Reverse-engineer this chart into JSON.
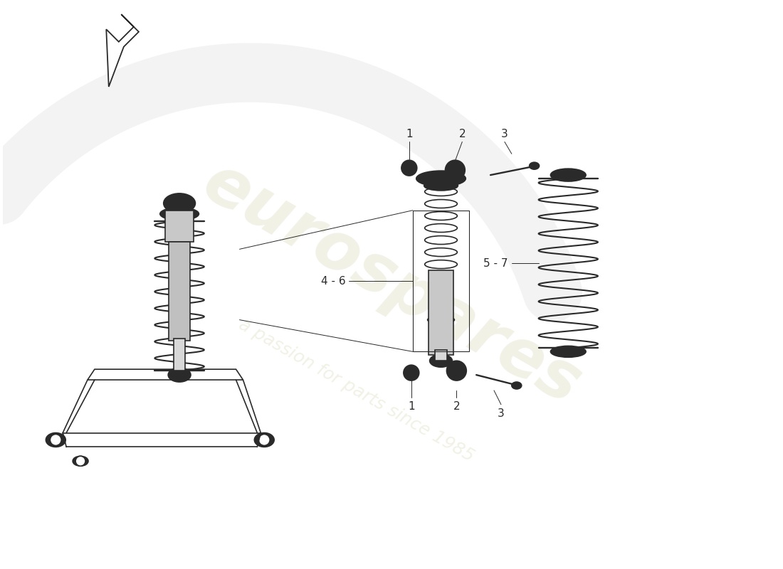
{
  "background_color": "#ffffff",
  "line_color": "#2a2a2a",
  "watermark_color": "#e8e8d0",
  "watermark_text": "eurospares",
  "watermark_subtext": "a passion for parts since 1985",
  "label_numbers": [
    "1",
    "2",
    "3",
    "4 - 6",
    "5 - 7"
  ],
  "figsize": [
    11.0,
    8.0
  ],
  "dpi": 100
}
